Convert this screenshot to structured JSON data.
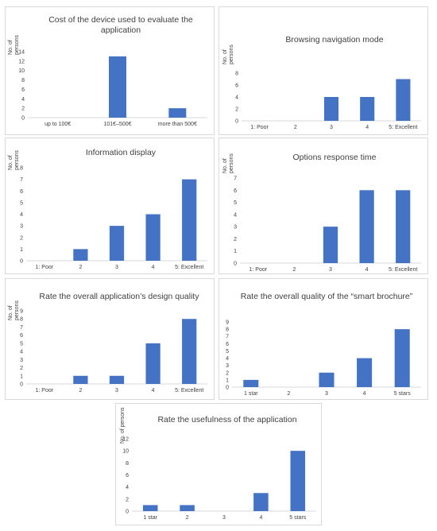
{
  "figure": {
    "panels": [
      {
        "id": "cost",
        "title": "Cost of the device used to evaluate the application",
        "ylabel": "No. of persons"
      },
      {
        "id": "browsing",
        "title": "Browsing navigation mode",
        "ylabel": "No. of persons"
      },
      {
        "id": "info",
        "title": "Information display",
        "ylabel": "No. of persons"
      },
      {
        "id": "response",
        "title": "Options response time",
        "ylabel": "No. of persons"
      },
      {
        "id": "design",
        "title": "Rate the overall application’s design quality",
        "ylabel": "No. of persons"
      },
      {
        "id": "brochure",
        "title": "Rate the overall quality of the “smart brochure”",
        "ylabel": ""
      },
      {
        "id": "usefulness",
        "title": "Rate the usefulness of the application",
        "ylabel": "No. of persons"
      }
    ]
  },
  "chart_data": [
    {
      "type": "bar",
      "title": "Cost of the device used to evaluate the application",
      "ylabel": "No. of persons",
      "categories": [
        "up to 100€",
        "101€–500€",
        "more than 500€"
      ],
      "values": [
        0,
        13,
        2
      ],
      "ylim": [
        0,
        14
      ],
      "yticks": [
        0,
        2,
        4,
        6,
        8,
        10,
        12,
        14
      ],
      "color": "#4472c4"
    },
    {
      "type": "bar",
      "title": "Browsing navigation mode",
      "ylabel": "No. of persons",
      "categories": [
        "1: Poor",
        "2",
        "3",
        "4",
        "5: Excellent"
      ],
      "values": [
        0,
        0,
        4,
        4,
        7
      ],
      "ylim": [
        0,
        8
      ],
      "yticks": [
        0,
        2,
        4,
        6,
        8
      ],
      "color": "#4472c4"
    },
    {
      "type": "bar",
      "title": "Information display",
      "ylabel": "No. of persons",
      "categories": [
        "1: Poor",
        "2",
        "3",
        "4",
        "5: Excellent"
      ],
      "values": [
        0,
        1,
        3,
        4,
        7
      ],
      "ylim": [
        0,
        8
      ],
      "yticks": [
        0,
        1,
        2,
        3,
        4,
        5,
        6,
        7,
        8
      ],
      "color": "#4472c4"
    },
    {
      "type": "bar",
      "title": "Options response time",
      "ylabel": "No. of persons",
      "categories": [
        "1: Poor",
        "2",
        "3",
        "4",
        "5: Excellent"
      ],
      "values": [
        0,
        0,
        3,
        6,
        6
      ],
      "ylim": [
        0,
        7
      ],
      "yticks": [
        0,
        1,
        2,
        3,
        4,
        5,
        6,
        7
      ],
      "color": "#4472c4"
    },
    {
      "type": "bar",
      "title": "Rate the overall application’s design quality",
      "ylabel": "No. of persons",
      "categories": [
        "1: Poor",
        "2",
        "3",
        "4",
        "5: Excellent"
      ],
      "values": [
        0,
        1,
        1,
        5,
        8
      ],
      "ylim": [
        0,
        9
      ],
      "yticks": [
        0,
        1,
        2,
        3,
        4,
        5,
        6,
        7,
        8,
        9
      ],
      "color": "#4472c4"
    },
    {
      "type": "bar",
      "title": "Rate the overall quality of the “smart brochure”",
      "ylabel": "",
      "categories": [
        "1 star",
        "2",
        "3",
        "4",
        "5 stars"
      ],
      "values": [
        1,
        0,
        2,
        4,
        8
      ],
      "ylim": [
        0,
        9
      ],
      "yticks": [
        0,
        1,
        2,
        3,
        4,
        5,
        6,
        7,
        8,
        9
      ],
      "color": "#4472c4"
    },
    {
      "type": "bar",
      "title": "Rate the usefulness of the application",
      "ylabel": "No. of persons",
      "categories": [
        "1 star",
        "2",
        "3",
        "4",
        "5 stars"
      ],
      "values": [
        1,
        1,
        0,
        3,
        10
      ],
      "ylim": [
        0,
        12
      ],
      "yticks": [
        0,
        2,
        4,
        6,
        8,
        10,
        12
      ],
      "color": "#4472c4"
    }
  ]
}
